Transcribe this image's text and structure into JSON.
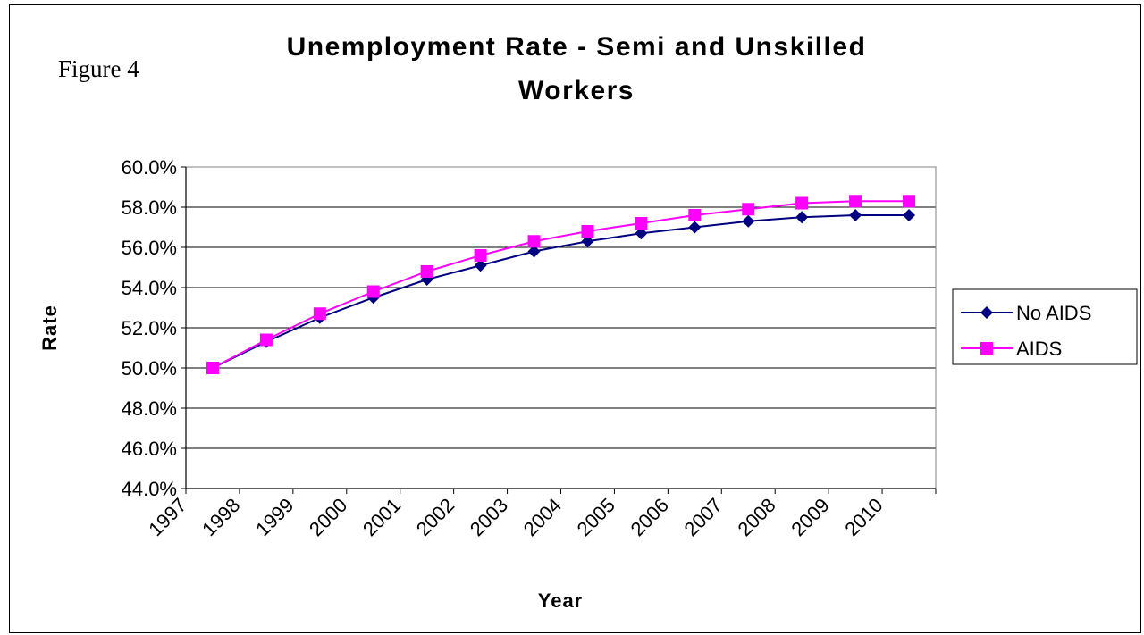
{
  "figure_label": "Figure 4",
  "chart_data": {
    "type": "line",
    "title_lines": [
      "Unemployment Rate - Semi and Unskilled",
      "Workers"
    ],
    "xlabel": "Year",
    "ylabel": "Rate",
    "categories": [
      "1997",
      "1998",
      "1999",
      "2000",
      "2001",
      "2002",
      "2003",
      "2004",
      "2005",
      "2006",
      "2007",
      "2008",
      "2009",
      "2010"
    ],
    "ylim": [
      0.44,
      0.6
    ],
    "yticks": [
      0.44,
      0.46,
      0.48,
      0.5,
      0.52,
      0.54,
      0.56,
      0.58,
      0.6
    ],
    "ytick_labels": [
      "44.0%",
      "46.0%",
      "48.0%",
      "50.0%",
      "52.0%",
      "54.0%",
      "56.0%",
      "58.0%",
      "60.0%"
    ],
    "grid": "horizontal",
    "legend_position": "right",
    "series": [
      {
        "name": "No AIDS",
        "color": "#000080",
        "marker": "diamond",
        "values": [
          0.5,
          0.513,
          0.525,
          0.535,
          0.544,
          0.551,
          0.558,
          0.563,
          0.567,
          0.57,
          0.573,
          0.575,
          0.576,
          0.576
        ]
      },
      {
        "name": "AIDS",
        "color": "#FF00FF",
        "marker": "square",
        "values": [
          0.5,
          0.514,
          0.527,
          0.538,
          0.548,
          0.556,
          0.563,
          0.568,
          0.572,
          0.576,
          0.579,
          0.582,
          0.583,
          0.583
        ]
      }
    ]
  }
}
